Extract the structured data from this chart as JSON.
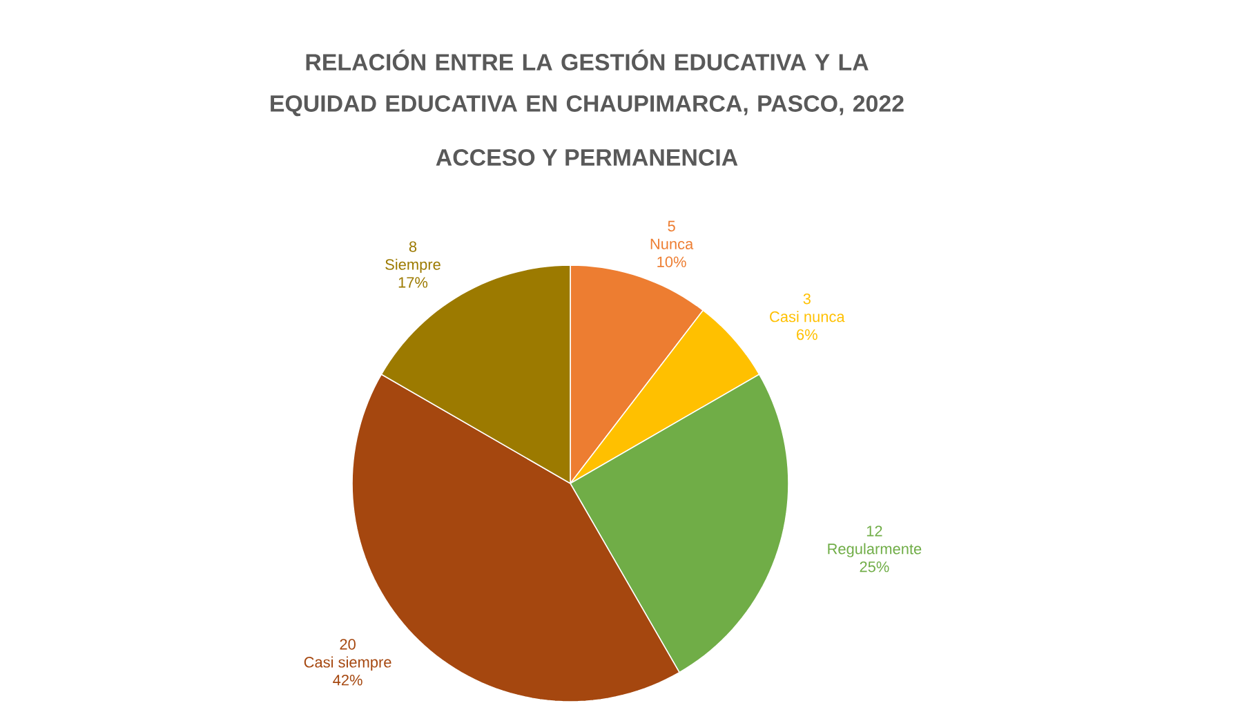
{
  "chart_data": {
    "type": "pie",
    "title": "RELACIÓN ENTRE LA GESTIÓN EDUCATIVA Y LA EQUIDAD EDUCATIVA EN CHAUPIMARCA, PASCO, 2022",
    "subtitle": "ACCESO Y PERMANENCIA",
    "categories": [
      "Nunca",
      "Casi nunca",
      "Regularmente",
      "Casi siempre",
      "Siempre"
    ],
    "values": [
      5,
      3,
      12,
      20,
      8
    ],
    "annotations": [
      "10%",
      "6%",
      "25%",
      "42%",
      "17%"
    ],
    "colors": [
      "#ed7d31",
      "#ffc000",
      "#70ad47",
      "#a5470f",
      "#9c7a00"
    ],
    "data_labels": true
  }
}
